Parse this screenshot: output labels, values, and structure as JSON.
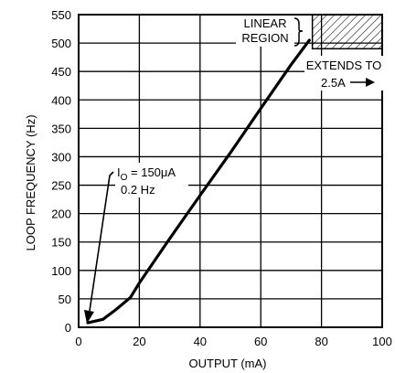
{
  "chart_data": {
    "type": "line",
    "xlabel": "OUTPUT (mA)",
    "ylabel": "LOOP FREQUENCY (Hz)",
    "xlim": [
      0,
      100
    ],
    "ylim": [
      0,
      550
    ],
    "x_ticks": [
      "0",
      "20",
      "40",
      "60",
      "80",
      "100"
    ],
    "y_ticks": [
      "0",
      "50",
      "100",
      "150",
      "200",
      "250",
      "300",
      "350",
      "400",
      "450",
      "500",
      "550"
    ],
    "x_tick_values": [
      0,
      20,
      40,
      60,
      80,
      100
    ],
    "y_tick_values": [
      0,
      50,
      100,
      150,
      200,
      250,
      300,
      350,
      400,
      450,
      500,
      550
    ],
    "grid": true,
    "series": [
      {
        "x": [
          3,
          8,
          12,
          17,
          20,
          30,
          40,
          50,
          60,
          70,
          76
        ],
        "y": [
          8,
          14,
          30,
          52,
          78,
          156,
          232,
          307,
          385,
          462,
          505
        ]
      }
    ],
    "linear_region": {
      "x_range": [
        77,
        100
      ],
      "y_range": [
        490,
        550
      ]
    },
    "annotations": {
      "linear_region_label_1": "LINEAR",
      "linear_region_label_2": "REGION",
      "extends_label_1": "EXTENDS TO",
      "extends_label_2": "2.5A",
      "io_label": "I",
      "io_subscript": "O",
      "io_value": " = 150μA",
      "io_freq": "0.2 Hz"
    },
    "colors": {
      "line": "#000000",
      "grid": "#000000",
      "background": "#ffffff"
    }
  }
}
